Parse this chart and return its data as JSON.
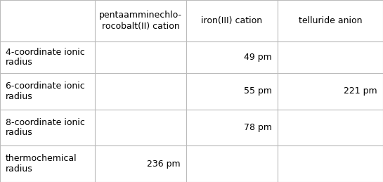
{
  "col_headers": [
    "pentaamminechlo-\nrocobalt(II) cation",
    "iron(III) cation",
    "telluride anion"
  ],
  "row_headers": [
    "4-coordinate ionic\nradius",
    "6-coordinate ionic\nradius",
    "8-coordinate ionic\nradius",
    "thermochemical\nradius"
  ],
  "cells": [
    [
      "",
      "49 pm",
      ""
    ],
    [
      "",
      "55 pm",
      "221 pm"
    ],
    [
      "",
      "78 pm",
      ""
    ],
    [
      "236 pm",
      "",
      ""
    ]
  ],
  "bg_color": "#ffffff",
  "text_color": "#000000",
  "line_color": "#bbbbbb",
  "font_size": 9
}
